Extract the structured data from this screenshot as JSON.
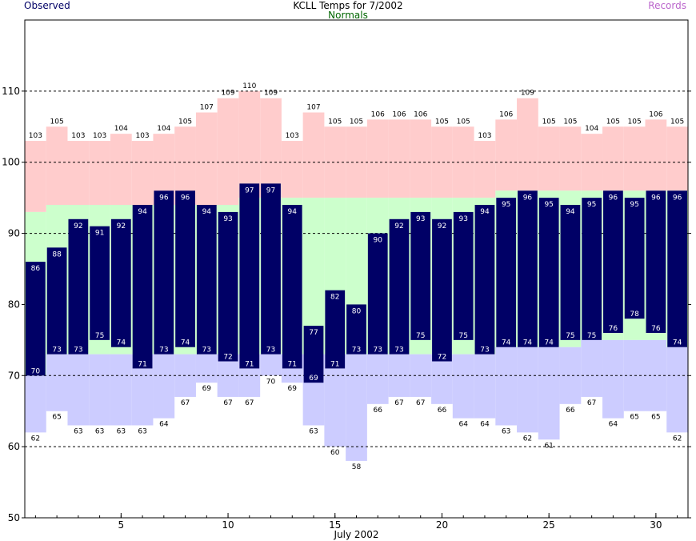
{
  "chart_data": {
    "type": "bar",
    "title": "KCLL Temps for 7/2002",
    "xlabel": "July 2002",
    "ylabel": "",
    "legend": {
      "observed": {
        "label": "Observed",
        "color": "#000066"
      },
      "normals": {
        "label": "Normals",
        "color": "#006600"
      },
      "records": {
        "label": "Records",
        "color": "#bb66cc"
      }
    },
    "colors": {
      "observed_bar": "#000066",
      "normal_band": "#ccffcc",
      "record_high_band": "#ffcccc",
      "record_low_band": "#ccccff"
    },
    "x_ticks": [
      5,
      10,
      15,
      20,
      25,
      30
    ],
    "y_ticks": [
      50,
      60,
      70,
      80,
      90,
      100,
      110
    ],
    "ylim": [
      50,
      120
    ],
    "xlim": [
      0.5,
      31.5
    ],
    "grid": "horizontal dashed at 60, 70, 90, 100, 110",
    "days": [
      1,
      2,
      3,
      4,
      5,
      6,
      7,
      8,
      9,
      10,
      11,
      12,
      13,
      14,
      15,
      16,
      17,
      18,
      19,
      20,
      21,
      22,
      23,
      24,
      25,
      26,
      27,
      28,
      29,
      30,
      31
    ],
    "observed_high": [
      86,
      88,
      92,
      91,
      92,
      94,
      96,
      96,
      94,
      93,
      97,
      97,
      94,
      77,
      82,
      80,
      90,
      92,
      93,
      92,
      93,
      94,
      95,
      96,
      95,
      94,
      95,
      96,
      95,
      96,
      96
    ],
    "observed_low": [
      70,
      73,
      73,
      75,
      74,
      71,
      73,
      74,
      73,
      72,
      71,
      73,
      71,
      69,
      71,
      73,
      73,
      73,
      75,
      72,
      75,
      73,
      74,
      74,
      74,
      75,
      75,
      76,
      78,
      76,
      74
    ],
    "normal_high": [
      93,
      94,
      94,
      94,
      94,
      94,
      94,
      94,
      94,
      94,
      95,
      95,
      95,
      95,
      95,
      95,
      95,
      95,
      95,
      95,
      95,
      95,
      96,
      96,
      96,
      96,
      96,
      96,
      96,
      96,
      96
    ],
    "normal_low": [
      70,
      73,
      73,
      73,
      73,
      73,
      73,
      73,
      73,
      73,
      73,
      73,
      73,
      73,
      73,
      73,
      73,
      73,
      73,
      73,
      73,
      73,
      74,
      74,
      74,
      74,
      75,
      75,
      75,
      75,
      74
    ],
    "record_high": [
      103,
      105,
      103,
      103,
      104,
      103,
      104,
      105,
      107,
      109,
      110,
      109,
      103,
      107,
      105,
      105,
      106,
      106,
      106,
      105,
      105,
      103,
      106,
      109,
      105,
      105,
      104,
      105,
      105,
      106,
      105
    ],
    "record_low": [
      62,
      65,
      63,
      63,
      63,
      63,
      64,
      67,
      69,
      67,
      67,
      70,
      69,
      63,
      60,
      58,
      66,
      67,
      67,
      66,
      64,
      64,
      63,
      62,
      61,
      66,
      67,
      64,
      65,
      65,
      62
    ]
  }
}
